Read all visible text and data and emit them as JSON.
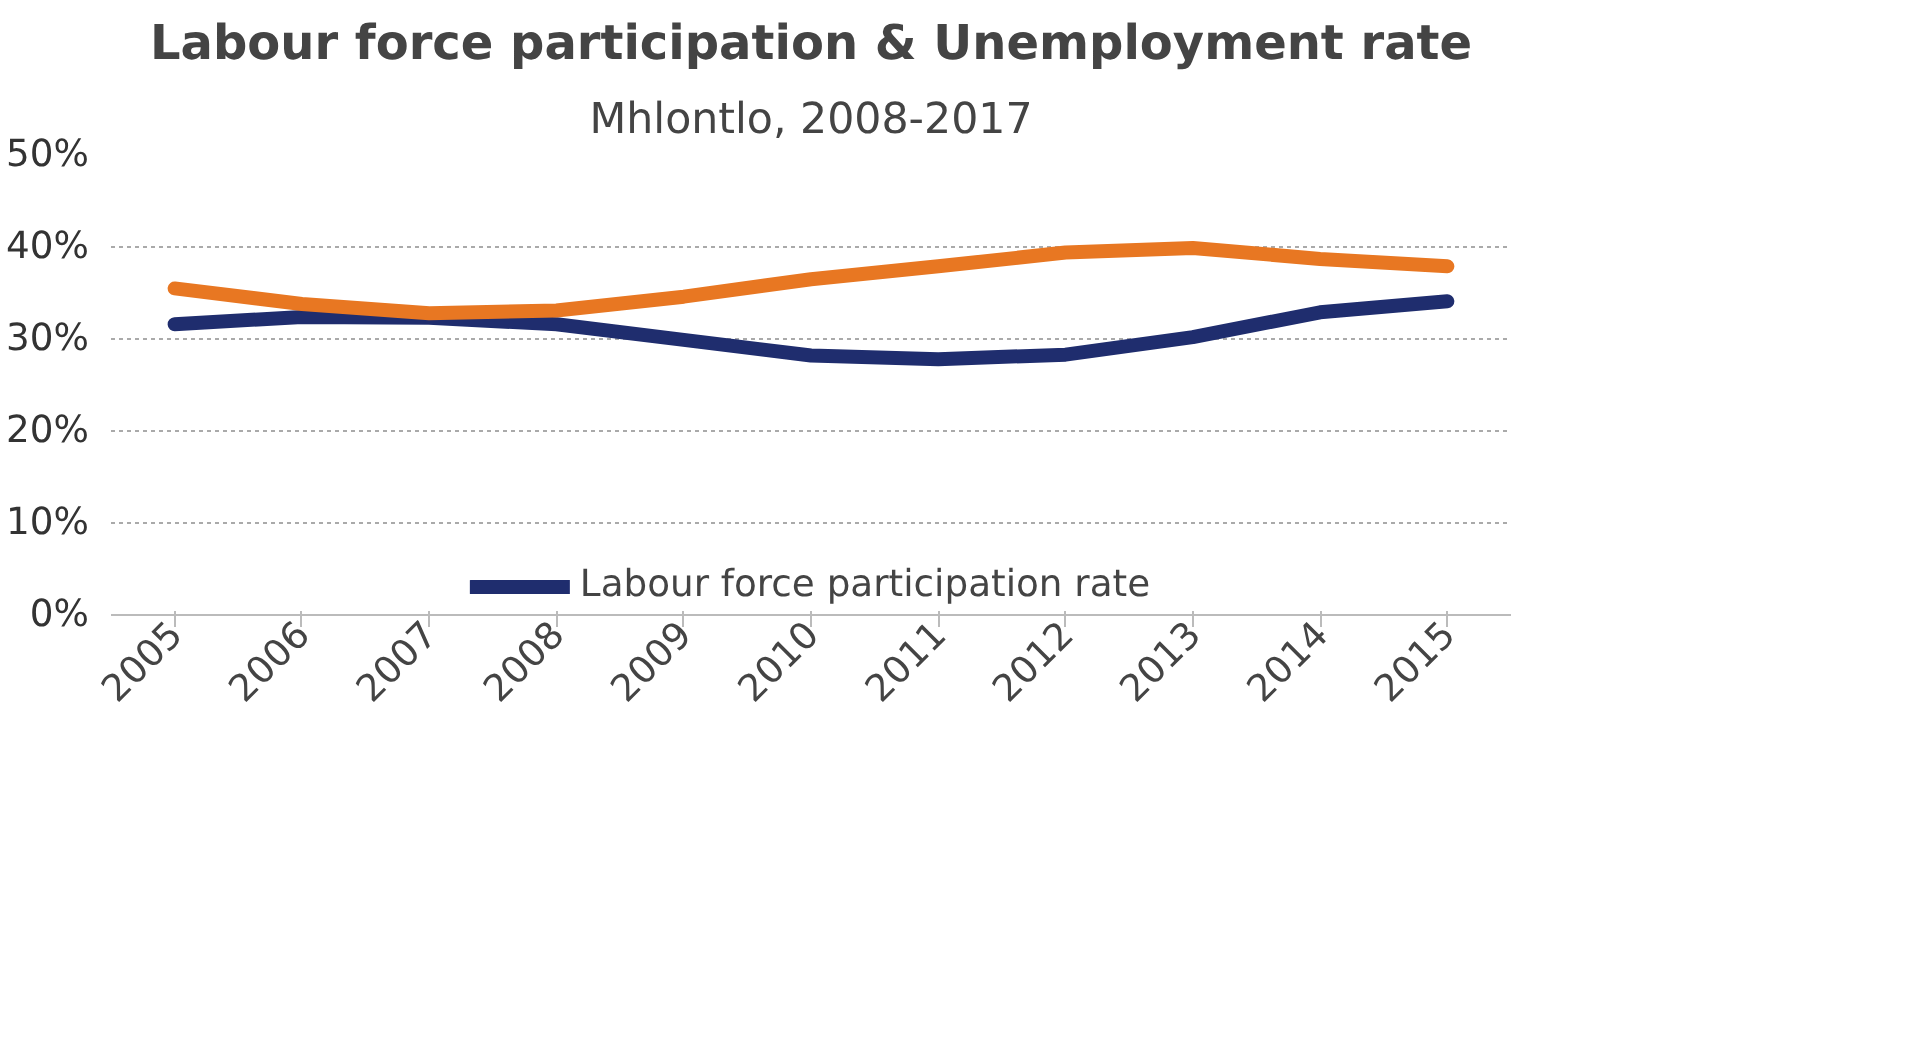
{
  "chart_data": {
    "type": "line",
    "title": "Labour force participation & Unemployment rate",
    "subtitle": "Mhlontlo, 2008-2017",
    "categories": [
      "2005",
      "2006",
      "2007",
      "2008",
      "2009",
      "2010",
      "2011",
      "2012",
      "2013",
      "2014",
      "2015"
    ],
    "series": [
      {
        "name": "Labour force participation rate",
        "color": "#1f2d6e",
        "values": [
          31.6,
          32.4,
          32.3,
          31.6,
          29.9,
          28.2,
          27.8,
          28.3,
          30.2,
          32.9,
          34.1
        ]
      },
      {
        "color": "#e87722",
        "values": [
          35.5,
          33.8,
          32.8,
          33.1,
          34.6,
          36.5,
          37.9,
          39.4,
          39.9,
          38.7,
          37.9
        ]
      }
    ],
    "ylim": [
      0,
      50
    ],
    "yticks": [
      {
        "value": 0,
        "label": "0%"
      },
      {
        "value": 10,
        "label": "10%"
      },
      {
        "value": 20,
        "label": "20%"
      },
      {
        "value": 30,
        "label": "30%"
      },
      {
        "value": 40,
        "label": "40%"
      },
      {
        "value": 50,
        "label": "50%"
      }
    ],
    "grid": "y",
    "legend": "bottom",
    "marker": "none",
    "line_style": "solid"
  }
}
